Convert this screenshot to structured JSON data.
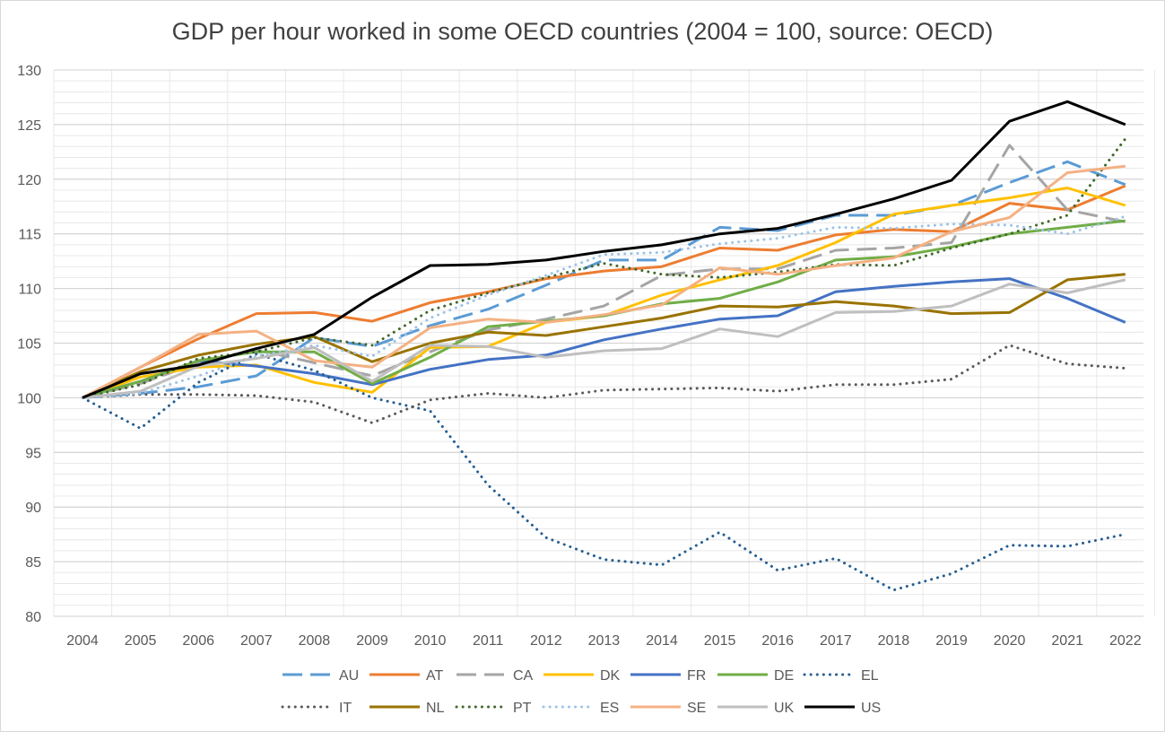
{
  "chart_data": {
    "type": "line",
    "title": "GDP per hour worked in some OECD countries (2004 = 100, source: OECD)",
    "xlabel": "",
    "ylabel": "",
    "ylim": [
      80,
      130
    ],
    "y_ticks": [
      80,
      85,
      90,
      95,
      100,
      105,
      110,
      115,
      120,
      125,
      130
    ],
    "grid": true,
    "legend_position": "bottom",
    "x": [
      "2004",
      "2005",
      "2006",
      "2007",
      "2008",
      "2009",
      "2010",
      "2011",
      "2012",
      "2013",
      "2014",
      "2015",
      "2016",
      "2017",
      "2018",
      "2019",
      "2020",
      "2021",
      "2022"
    ],
    "series": [
      {
        "name": "AU",
        "color": "#5B9BD5",
        "dash": "long-dash",
        "values": [
          100,
          100.4,
          101,
          102,
          105.5,
          104.7,
          106.6,
          108.1,
          110.3,
          112.6,
          112.6,
          115.6,
          115.3,
          116.7,
          116.7,
          117.6,
          119.7,
          121.6,
          119.5
        ]
      },
      {
        "name": "AT",
        "color": "#ED7D31",
        "dash": "solid",
        "values": [
          100,
          102.8,
          105.4,
          107.7,
          107.8,
          107,
          108.7,
          109.7,
          110.9,
          111.6,
          112,
          113.7,
          113.5,
          114.9,
          115.4,
          115.2,
          117.8,
          117.2,
          119.4
        ]
      },
      {
        "name": "CA",
        "color": "#A5A5A5",
        "dash": "long-dash",
        "values": [
          100,
          101.3,
          103.2,
          104.4,
          103.2,
          102,
          104.2,
          106.2,
          107.2,
          108.4,
          111.2,
          111.8,
          111.8,
          113.5,
          113.7,
          114.2,
          123.1,
          117.2,
          116.1
        ]
      },
      {
        "name": "DK",
        "color": "#FFC000",
        "dash": "solid",
        "values": [
          100,
          101.9,
          102.8,
          103,
          101.4,
          100.5,
          104.6,
          104.7,
          106.9,
          107.5,
          109.4,
          110.8,
          112.1,
          114.2,
          116.8,
          117.6,
          118.3,
          119.2,
          117.6
        ]
      },
      {
        "name": "FR",
        "color": "#4472C4",
        "dash": "solid",
        "values": [
          100,
          101.5,
          103.4,
          102.9,
          102.2,
          101.2,
          102.6,
          103.5,
          103.9,
          105.3,
          106.3,
          107.2,
          107.5,
          109.7,
          110.2,
          110.6,
          110.9,
          109.1,
          106.9
        ]
      },
      {
        "name": "DE",
        "color": "#70AD47",
        "dash": "solid",
        "values": [
          100,
          101.5,
          103.4,
          104.2,
          104.2,
          101.3,
          103.7,
          106.5,
          107,
          107.5,
          108.6,
          109.1,
          110.6,
          112.6,
          112.9,
          113.8,
          115,
          115.6,
          116.2
        ]
      },
      {
        "name": "EL",
        "color": "#255E91",
        "dash": "dotted",
        "values": [
          100,
          97.2,
          101.4,
          104,
          102.5,
          100,
          98.8,
          92,
          87.2,
          85.2,
          84.7,
          87.7,
          84.2,
          85.3,
          82.4,
          83.9,
          86.5,
          86.4,
          87.5
        ]
      },
      {
        "name": "IT",
        "color": "#595959",
        "dash": "dotted",
        "values": [
          100,
          100.3,
          100.3,
          100.2,
          99.6,
          97.7,
          99.8,
          100.4,
          100,
          100.7,
          100.8,
          100.9,
          100.6,
          101.2,
          101.2,
          101.7,
          104.8,
          103.1,
          102.7
        ]
      },
      {
        "name": "NL",
        "color": "#997300",
        "dash": "solid",
        "values": [
          100,
          102.4,
          103.9,
          104.9,
          105.6,
          103.3,
          105,
          106,
          105.7,
          106.5,
          107.3,
          108.4,
          108.3,
          108.8,
          108.4,
          107.7,
          107.8,
          110.8,
          111.3
        ]
      },
      {
        "name": "PT",
        "color": "#43682B",
        "dash": "dotted",
        "values": [
          100,
          101.2,
          103.6,
          104.2,
          105.5,
          104.8,
          108,
          109.6,
          111,
          112.3,
          111.3,
          111,
          111.5,
          112.2,
          112.1,
          113.7,
          115,
          116.7,
          123.7
        ]
      },
      {
        "name": "ES",
        "color": "#9DC3E6",
        "dash": "dotted",
        "values": [
          100,
          100.4,
          102,
          103.8,
          104.8,
          103.8,
          107.3,
          109.4,
          111.2,
          113.1,
          113.3,
          114.1,
          114.6,
          115.6,
          115.5,
          115.9,
          115.8,
          115,
          116.6
        ]
      },
      {
        "name": "SE",
        "color": "#F4B183",
        "dash": "solid",
        "values": [
          100,
          102.8,
          105.8,
          106.1,
          103.4,
          102.8,
          106.4,
          107.2,
          106.9,
          107.6,
          108.5,
          111.9,
          111.3,
          112.1,
          112.8,
          115.2,
          116.5,
          120.6,
          121.2
        ]
      },
      {
        "name": "UK",
        "color": "#BFBFBF",
        "dash": "solid",
        "values": [
          100,
          100.6,
          102.9,
          103.6,
          104.6,
          101.5,
          104.8,
          104.7,
          103.7,
          104.3,
          104.5,
          106.3,
          105.6,
          107.8,
          107.9,
          108.4,
          110.4,
          109.6,
          110.8
        ]
      },
      {
        "name": "US",
        "color": "#000000",
        "dash": "solid",
        "values": [
          100,
          102.2,
          103,
          104.5,
          105.8,
          109.2,
          112.1,
          112.2,
          112.6,
          113.4,
          114,
          115,
          115.5,
          116.8,
          118.2,
          119.9,
          125.3,
          127.1,
          125
        ]
      }
    ]
  }
}
